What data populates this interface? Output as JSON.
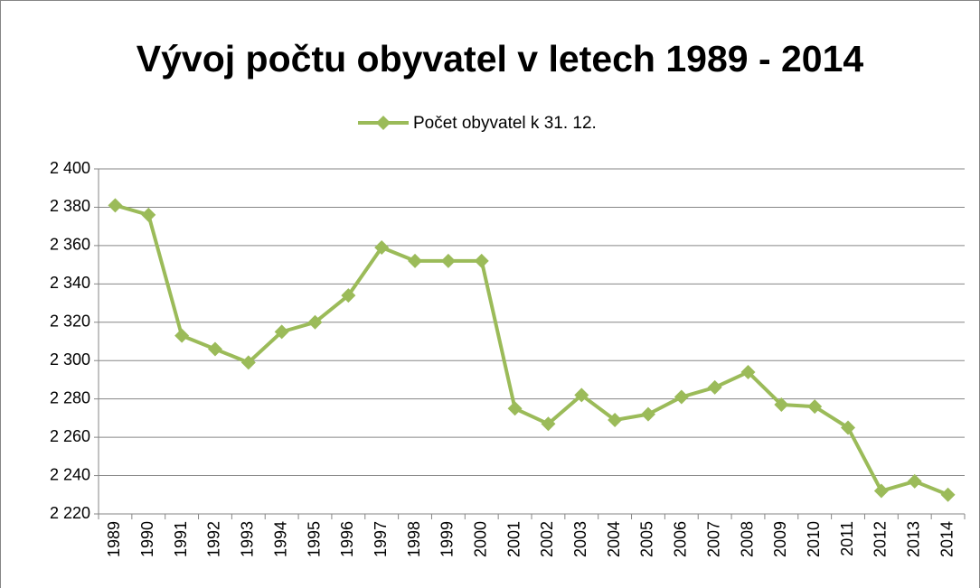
{
  "chart_data": {
    "type": "line",
    "title": "Vývoj počtu obyvatel v letech 1989 - 2014",
    "categories": [
      "1989",
      "1990",
      "1991",
      "1992",
      "1993",
      "1994",
      "1995",
      "1996",
      "1997",
      "1998",
      "1999",
      "2000",
      "2001",
      "2002",
      "2003",
      "2004",
      "2005",
      "2006",
      "2007",
      "2008",
      "2009",
      "2010",
      "2011",
      "2012",
      "2013",
      "2014"
    ],
    "series": [
      {
        "name": "Počet obyvatel k 31. 12.",
        "color": "#9bbb59",
        "values": [
          2381,
          2376,
          2313,
          2306,
          2299,
          2315,
          2320,
          2334,
          2359,
          2352,
          2352,
          2352,
          2275,
          2267,
          2282,
          2269,
          2272,
          2281,
          2286,
          2294,
          2277,
          2276,
          2265,
          2232,
          2237,
          2230
        ]
      }
    ],
    "ylim": [
      2220,
      2400
    ],
    "yticks": [
      {
        "value": 2220,
        "label": "2 220"
      },
      {
        "value": 2240,
        "label": "2 240"
      },
      {
        "value": 2260,
        "label": "2 260"
      },
      {
        "value": 2280,
        "label": "2 280"
      },
      {
        "value": 2300,
        "label": "2 300"
      },
      {
        "value": 2320,
        "label": "2 320"
      },
      {
        "value": 2340,
        "label": "2 340"
      },
      {
        "value": 2360,
        "label": "2 360"
      },
      {
        "value": 2380,
        "label": "2 380"
      },
      {
        "value": 2400,
        "label": "2 400"
      }
    ],
    "grid": true,
    "legend": "top"
  }
}
